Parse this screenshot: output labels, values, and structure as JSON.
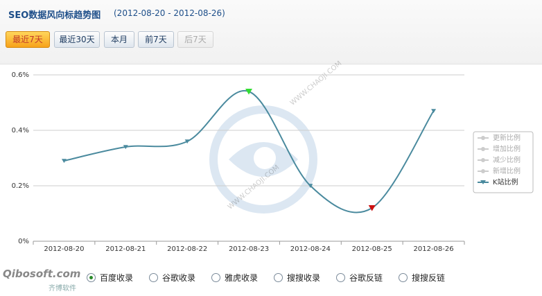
{
  "header": {
    "title": "SEO数据风向标趋势图",
    "range": "(2012-08-20 - 2012-08-26)"
  },
  "buttons": [
    "最近7天",
    "最近30天",
    "本月",
    "前7天",
    "后7天"
  ],
  "options": [
    "百度收录",
    "谷歌收录",
    "雅虎收录",
    "搜搜收录",
    "谷歌反链",
    "搜搜反链"
  ],
  "logo": {
    "name": "Qibosoft.com",
    "subtitle": "齐博软件"
  },
  "watermark": "WWW.CHAOJI.COM",
  "chart_data": {
    "type": "line",
    "categories": [
      "2012-08-20",
      "2012-08-21",
      "2012-08-22",
      "2012-08-23",
      "2012-08-24",
      "2012-08-25",
      "2012-08-26"
    ],
    "series": [
      {
        "name": "K站比例",
        "color": "#4a8a9e",
        "values": [
          0.29,
          0.34,
          0.36,
          0.54,
          0.2,
          0.12,
          0.47
        ]
      }
    ],
    "hidden_series_names": [
      "更新比例",
      "增加比例",
      "减少比例",
      "新增比例"
    ],
    "ylim": [
      0,
      0.6
    ],
    "yticks": [
      {
        "value": 0,
        "label": "0%"
      },
      {
        "value": 0.2,
        "label": "0.2%"
      },
      {
        "value": 0.4,
        "label": "0.4%"
      },
      {
        "value": 0.6,
        "label": "0.6%"
      }
    ],
    "grid": true,
    "legend": "right",
    "max_color": "#33dd33",
    "min_color": "#cc1111"
  }
}
